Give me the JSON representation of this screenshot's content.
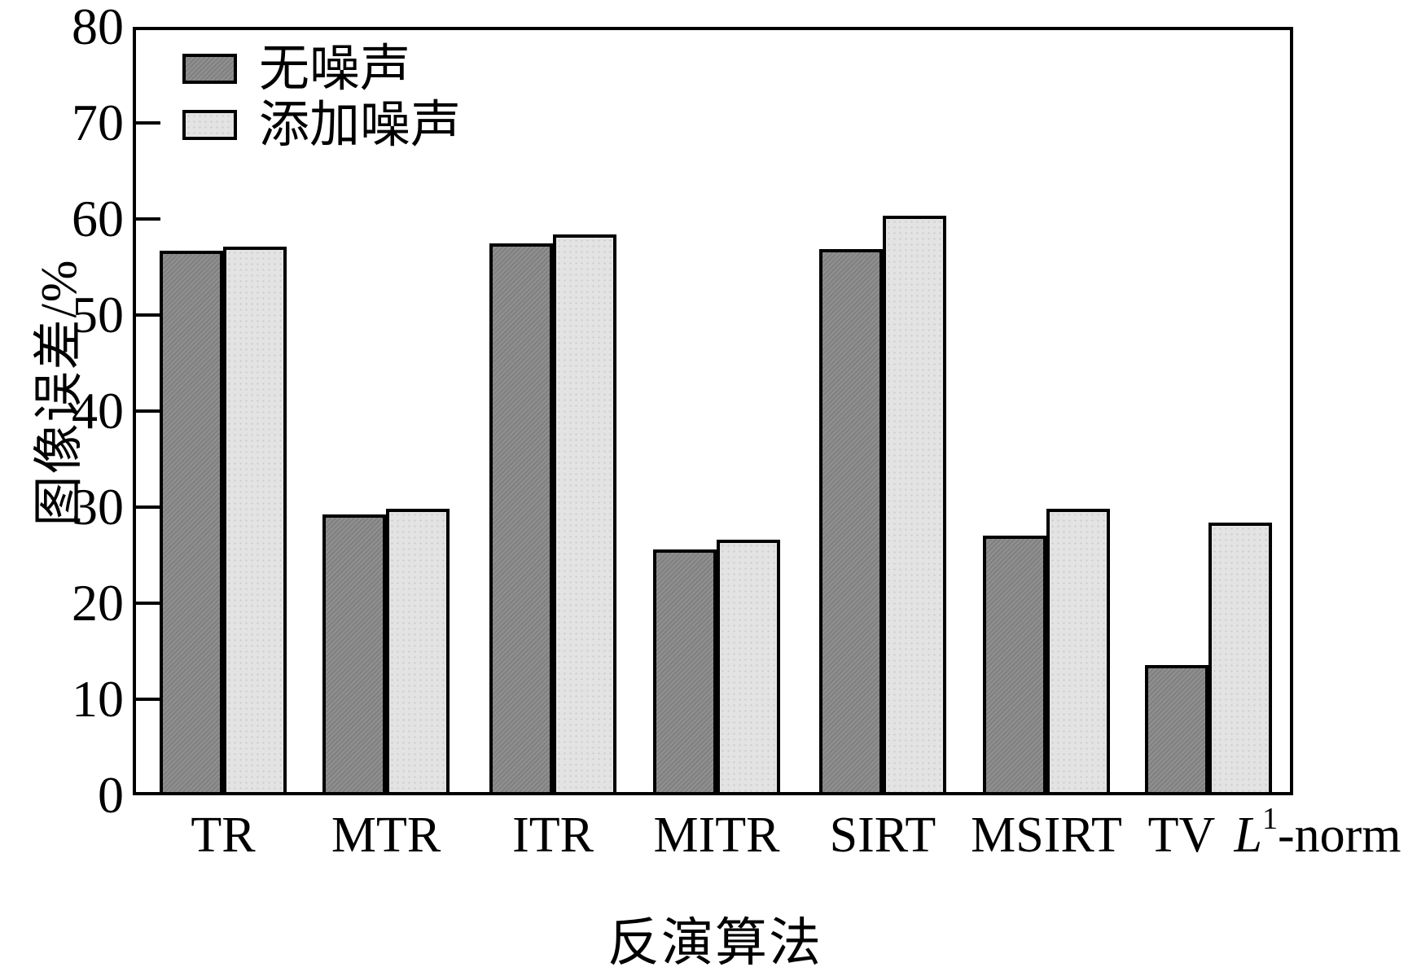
{
  "figure": {
    "kind": "scientific bar chart comparing inversion algorithms",
    "background": "#ffffff",
    "frame_color": "#000000"
  },
  "legend": {
    "items": [
      {
        "label": "无噪声",
        "color": "#8a8a8a"
      },
      {
        "label": "添加噪声",
        "color": "#e3e3e3"
      }
    ]
  },
  "chart_data": {
    "type": "bar",
    "title": "",
    "xlabel": "反演算法",
    "ylabel": "图像误差/%",
    "ylim": [
      0,
      80
    ],
    "yticks": [
      0,
      10,
      20,
      30,
      40,
      50,
      60,
      70,
      80
    ],
    "grid": false,
    "legend_position": "top-left inside",
    "categories": [
      "TR",
      "MTR",
      "ITR",
      "MITR",
      "SIRT",
      "MSIRT",
      "TV",
      "L¹-norm"
    ],
    "rich_labels": {
      "7": {
        "italic": "L",
        "sup": "1",
        "rest": "-norm"
      }
    },
    "series": [
      {
        "name": "无噪声",
        "color": "#8a8a8a",
        "values": [
          56.7,
          29.2,
          57.5,
          25.6,
          56.9,
          27.0,
          13.6,
          null
        ]
      },
      {
        "name": "添加噪声",
        "color": "#e3e3e3",
        "values": [
          57.1,
          29.8,
          58.4,
          26.6,
          60.3,
          29.8,
          null,
          28.4
        ]
      }
    ]
  }
}
